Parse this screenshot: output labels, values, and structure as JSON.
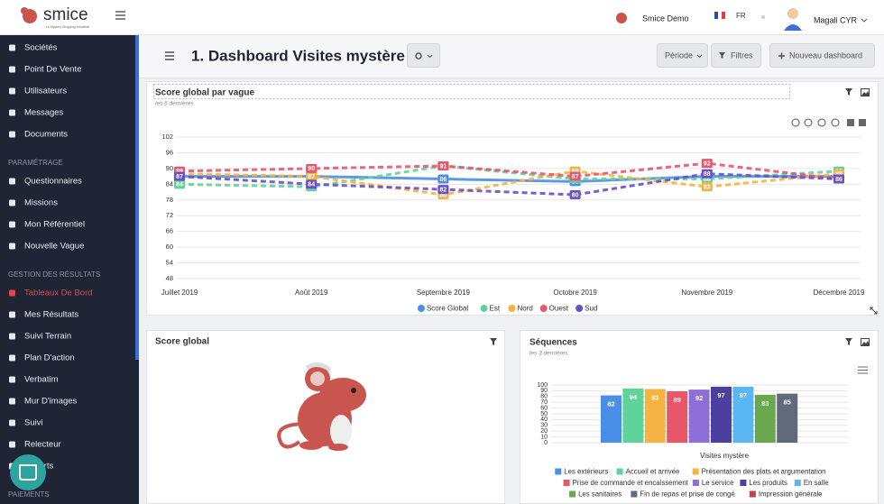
{
  "header": {
    "brand": "smice",
    "tagline": "Le Mystery Shopping réinventé",
    "account": "Smice Demo",
    "language": "FR",
    "user": "Magali CYR"
  },
  "sidebar": {
    "groups": [
      {
        "items": [
          {
            "label": "Sociétés"
          },
          {
            "label": "Point De Vente"
          },
          {
            "label": "Utilisateurs"
          },
          {
            "label": "Messages"
          },
          {
            "label": "Documents"
          }
        ]
      },
      {
        "title": "PARAMÉTRAGE",
        "items": [
          {
            "label": "Questionnaires"
          },
          {
            "label": "Missions"
          },
          {
            "label": "Mon Référentiel"
          },
          {
            "label": "Nouvelle Vague"
          }
        ]
      },
      {
        "title": "GESTION DES RÉSULTATS",
        "items": [
          {
            "label": "Tableaux De Bord",
            "active": true
          },
          {
            "label": "Mes Résultats"
          },
          {
            "label": "Suivi Terrain"
          },
          {
            "label": "Plan D'action"
          },
          {
            "label": "Verbatim"
          },
          {
            "label": "Mur D'images"
          },
          {
            "label": "Suivi"
          },
          {
            "label": "Relecteur"
          },
          {
            "label": "Exports"
          }
        ]
      },
      {
        "title": "PAIEMENTS",
        "items": []
      }
    ]
  },
  "page": {
    "title": "1. Dashboard Visites mystère",
    "buttons": [
      "Période",
      "Filtres",
      "Nouveau dashboard"
    ]
  },
  "score_widget": {
    "title": "Score global"
  },
  "chart_data": [
    {
      "type": "line",
      "title": "Score global par vague",
      "subtitle": "les 6 dernières",
      "categories": [
        "Juillet 2019",
        "Août 2019",
        "Septembre 2019",
        "Octobre 2019",
        "Novembre 2019",
        "Décembre 2019"
      ],
      "ylim": [
        48,
        102
      ],
      "yticks": [
        48,
        54,
        60,
        66,
        72,
        78,
        84,
        90,
        96,
        102
      ],
      "grid": true,
      "legend": "bottom",
      "series": [
        {
          "name": "Score Global",
          "color": "#4a8fe7",
          "values": [
            87,
            87,
            86,
            85,
            87,
            87
          ]
        },
        {
          "name": "Est",
          "color": "#5fd39a",
          "values": [
            84,
            83,
            91,
            86,
            86,
            89
          ]
        },
        {
          "name": "Nord",
          "color": "#f5b342",
          "values": [
            88,
            87,
            80,
            89,
            83,
            88
          ]
        },
        {
          "name": "Ouest",
          "color": "#e8566a",
          "values": [
            89,
            90,
            91,
            87,
            92,
            86
          ]
        },
        {
          "name": "Sud",
          "color": "#6a4fc9",
          "values": [
            87,
            84,
            82,
            80,
            88,
            86
          ]
        }
      ]
    },
    {
      "type": "bar",
      "title": "Séquences",
      "subtitle": "les 3 dernières",
      "categories": [
        "Visites mystère"
      ],
      "ylim": [
        0,
        100
      ],
      "yticks": [
        0,
        10,
        20,
        30,
        40,
        50,
        60,
        70,
        80,
        90,
        100
      ],
      "grid": true,
      "legend": "bottom",
      "series": [
        {
          "name": "Les extérieurs",
          "color": "#4a8fe7",
          "values": [
            82
          ]
        },
        {
          "name": "Accueil et arrivée",
          "color": "#5fd39a",
          "values": [
            94
          ]
        },
        {
          "name": "Présentation des plats et argumentation",
          "color": "#f5b342",
          "values": [
            93
          ]
        },
        {
          "name": "Prise de commande et encaissement",
          "color": "#e8566a",
          "values": [
            89
          ]
        },
        {
          "name": "Le service",
          "color": "#8e6fd8",
          "values": [
            92
          ]
        },
        {
          "name": "Les produits",
          "color": "#4b3fa0",
          "values": [
            97
          ]
        },
        {
          "name": "En salle",
          "color": "#5bb6f2",
          "values": [
            97
          ]
        },
        {
          "name": "Les sanitaires",
          "color": "#6aa84f",
          "values": [
            83
          ]
        },
        {
          "name": "Fin de repas et prise de congé",
          "color": "#5f6b7a",
          "values": [
            85
          ]
        },
        {
          "name": "Impression générale",
          "color": "#c2414b",
          "values": [
            null
          ]
        }
      ]
    }
  ]
}
